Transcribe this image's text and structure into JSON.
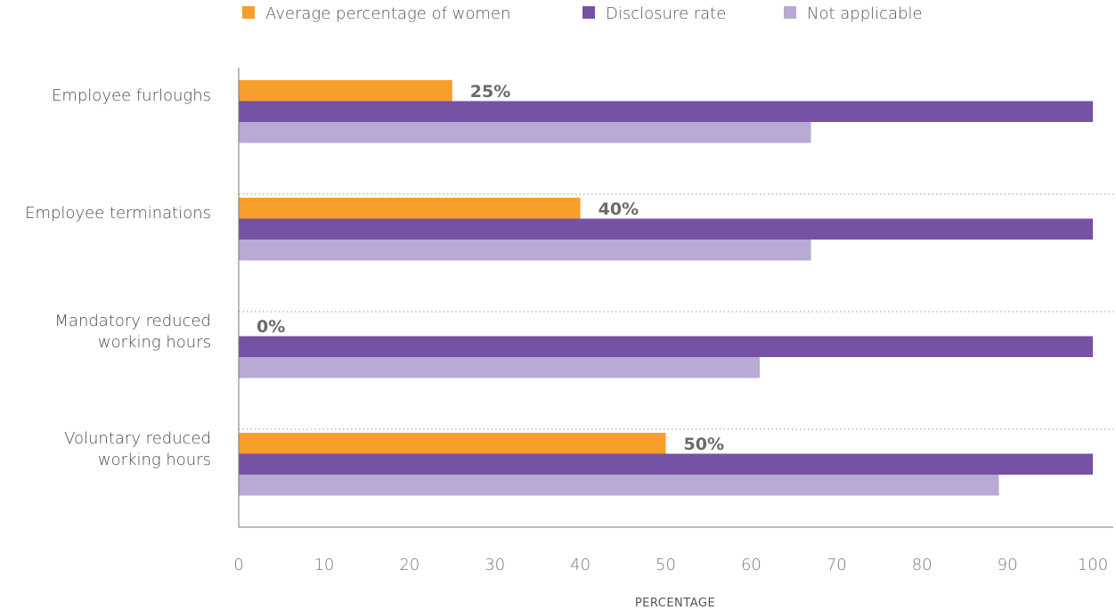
{
  "chart_data": {
    "type": "bar",
    "orientation": "horizontal",
    "categories": [
      [
        "Employee furloughs"
      ],
      [
        "Employee terminations"
      ],
      [
        "Mandatory reduced",
        "working hours"
      ],
      [
        "Voluntary reduced",
        "working hours"
      ]
    ],
    "series": [
      {
        "name": "Average percentage of women",
        "color": "#f79f2a",
        "values": [
          25,
          40,
          0,
          50
        ],
        "data_labels": [
          "25%",
          "40%",
          "0%",
          "50%"
        ]
      },
      {
        "name": "Disclosure rate",
        "color": "#7652a4",
        "values": [
          100,
          100,
          100,
          100
        ]
      },
      {
        "name": "Not applicable",
        "color": "#b8a9d5",
        "values": [
          67,
          67,
          61,
          89
        ]
      }
    ],
    "x_ticks": [
      "0",
      "10",
      "20",
      "30",
      "40",
      "50",
      "60",
      "70",
      "80",
      "90",
      "100"
    ],
    "xlim": [
      0,
      100
    ],
    "xlabel": "PERCENTAGE",
    "legend_position": "top",
    "grid": "dotted separators between categories"
  }
}
